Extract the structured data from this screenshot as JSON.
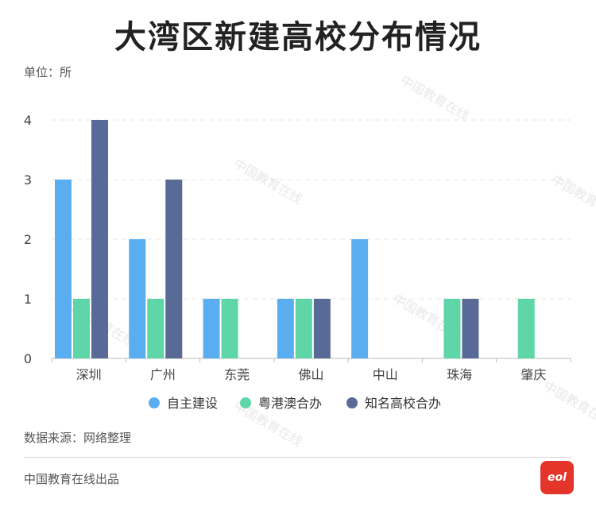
{
  "title": "大湾区新建高校分布情况",
  "unit_label": "单位：所",
  "source": "数据来源：网络整理",
  "producer": "中国教育在线出品",
  "watermark": "中国教育在线",
  "logo_text": "eol",
  "colors": {
    "background": "#ffffff",
    "gridline": "#e6e6e6",
    "axis": "#bbbbbb",
    "logo": "#e5352b"
  },
  "chart_data": {
    "type": "bar",
    "categories": [
      "深圳",
      "广州",
      "东莞",
      "佛山",
      "中山",
      "珠海",
      "肇庆"
    ],
    "series": [
      {
        "name": "自主建设",
        "color": "#5aaef0",
        "values": [
          3,
          2,
          1,
          1,
          2,
          0,
          0
        ]
      },
      {
        "name": "粤港澳合办",
        "color": "#5fd6a8",
        "values": [
          1,
          1,
          1,
          1,
          0,
          1,
          1
        ]
      },
      {
        "name": "知名高校合办",
        "color": "#5a6a96",
        "values": [
          4,
          3,
          0,
          1,
          0,
          1,
          0
        ]
      }
    ],
    "ylim": [
      0,
      4
    ],
    "yticks": [
      0,
      1,
      2,
      3,
      4
    ],
    "grid": true,
    "legend": "bottom"
  }
}
